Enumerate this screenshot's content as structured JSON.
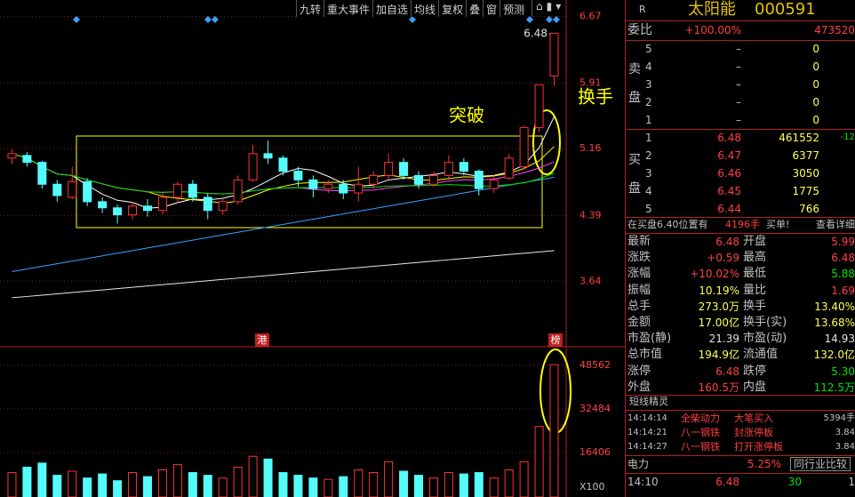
{
  "toolbar": [
    "九转",
    "重大事件",
    "加自选",
    "均线",
    "复权",
    "叠",
    "窗",
    "预测"
  ],
  "chart_data": {
    "type": "candlestick",
    "up_color": "#ff3232",
    "down_color": "#54fcfc",
    "open": [
      5.05,
      5.08,
      5.0,
      4.75,
      4.6,
      4.78,
      4.55,
      4.48,
      4.4,
      4.5,
      4.45,
      4.6,
      4.75,
      4.6,
      4.45,
      4.55,
      4.8,
      5.1,
      5.05,
      4.9,
      4.8,
      4.7,
      4.75,
      4.65,
      4.75,
      4.85,
      5.0,
      4.85,
      4.75,
      4.85,
      5.0,
      4.9,
      4.7,
      4.82,
      4.95,
      5.4,
      5.99
    ],
    "close": [
      5.1,
      5.0,
      4.75,
      4.62,
      4.78,
      4.55,
      4.48,
      4.4,
      4.5,
      4.45,
      4.6,
      4.75,
      4.6,
      4.45,
      4.55,
      4.8,
      5.1,
      5.05,
      4.9,
      4.8,
      4.7,
      4.75,
      4.65,
      4.75,
      4.85,
      5.0,
      4.85,
      4.75,
      4.85,
      5.0,
      4.9,
      4.7,
      4.8,
      5.05,
      5.4,
      5.89,
      6.48
    ],
    "high": [
      5.15,
      5.12,
      5.02,
      4.8,
      4.95,
      4.82,
      4.6,
      4.52,
      4.55,
      4.58,
      4.65,
      4.78,
      4.8,
      4.65,
      4.58,
      4.85,
      5.2,
      5.25,
      5.08,
      4.95,
      4.85,
      4.8,
      4.8,
      4.95,
      4.9,
      5.1,
      5.05,
      4.9,
      4.9,
      5.08,
      5.05,
      4.92,
      4.85,
      5.1,
      5.42,
      5.89,
      6.48
    ],
    "low": [
      4.98,
      4.95,
      4.7,
      4.55,
      4.58,
      4.5,
      4.42,
      4.3,
      4.35,
      4.38,
      4.4,
      4.55,
      4.55,
      4.35,
      4.4,
      4.52,
      4.78,
      4.98,
      4.85,
      4.72,
      4.6,
      4.65,
      4.58,
      4.55,
      4.7,
      4.8,
      4.8,
      4.7,
      4.72,
      4.82,
      4.85,
      4.62,
      4.65,
      4.8,
      4.92,
      5.35,
      5.88
    ],
    "volume": [
      9000,
      11000,
      12500,
      8000,
      9500,
      7000,
      8500,
      6000,
      9000,
      7500,
      10000,
      12000,
      9000,
      8000,
      7000,
      11000,
      15000,
      14000,
      9000,
      8000,
      7000,
      6500,
      7500,
      10000,
      9000,
      13000,
      9500,
      8000,
      7000,
      9000,
      8500,
      9000,
      7000,
      10000,
      13000,
      26000,
      48800
    ],
    "long_lines": [
      {
        "color": "#3aa0ff",
        "values": [
          3.75,
          3.78,
          3.81,
          3.84,
          3.87,
          3.9,
          3.93,
          3.96,
          3.99,
          4.02,
          4.05,
          4.08,
          4.11,
          4.14,
          4.17,
          4.2,
          4.23,
          4.26,
          4.29,
          4.32,
          4.35,
          4.38,
          4.41,
          4.44,
          4.47,
          4.5,
          4.53,
          4.56,
          4.59,
          4.62,
          4.65,
          4.68,
          4.71,
          4.74,
          4.77,
          4.8,
          4.83
        ]
      },
      {
        "color": "#e8e8e8",
        "values": [
          3.45,
          3.465,
          3.48,
          3.495,
          3.51,
          3.525,
          3.54,
          3.555,
          3.57,
          3.585,
          3.6,
          3.615,
          3.63,
          3.645,
          3.66,
          3.675,
          3.69,
          3.705,
          3.72,
          3.735,
          3.75,
          3.765,
          3.78,
          3.795,
          3.81,
          3.825,
          3.84,
          3.855,
          3.87,
          3.885,
          3.9,
          3.915,
          3.93,
          3.945,
          3.96,
          3.975,
          3.99
        ]
      }
    ],
    "ylim": [
      2.94,
      6.86
    ],
    "yticks": [
      3.64,
      4.39,
      5.16,
      5.91,
      6.67
    ],
    "vol_ylim": [
      0,
      53760
    ],
    "vol_yticks": [
      16406,
      32484,
      48562
    ],
    "vol_unit": "X100",
    "high_label": "6.48",
    "annotations": {
      "breakout": "突破",
      "turnover": "换手",
      "mark_left": "港",
      "mark_right": "榜"
    }
  },
  "panel": {
    "r": "R",
    "name": "太阳能",
    "code": "000591",
    "weibi": {
      "label": "委比",
      "pct": "+100.00%",
      "diff": "473520"
    },
    "sell_label": [
      "卖",
      "盘"
    ],
    "buy_label": [
      "买",
      "盘"
    ],
    "sell": [
      {
        "n": "5",
        "price": "–",
        "vol": "0"
      },
      {
        "n": "4",
        "price": "–",
        "vol": "0"
      },
      {
        "n": "3",
        "price": "–",
        "vol": "0"
      },
      {
        "n": "2",
        "price": "–",
        "vol": "0"
      },
      {
        "n": "1",
        "price": "–",
        "vol": "0"
      }
    ],
    "buy": [
      {
        "n": "1",
        "price": "6.48",
        "vol": "461552",
        "chg": "-12"
      },
      {
        "n": "2",
        "price": "6.47",
        "vol": "6377"
      },
      {
        "n": "3",
        "price": "6.46",
        "vol": "3050"
      },
      {
        "n": "4",
        "price": "6.45",
        "vol": "1775"
      },
      {
        "n": "5",
        "price": "6.44",
        "vol": "766"
      }
    ],
    "queue": {
      "text": "在买盘6.40位置有",
      "amount": "4196手",
      "tail": "买单!",
      "link": "查看详细"
    },
    "stats": [
      {
        "l1": "最新",
        "v1": "6.48",
        "c1": "#ff4040",
        "l2": "开盘",
        "v2": "5.99",
        "c2": "#ff4040"
      },
      {
        "l1": "涨跌",
        "v1": "+0.59",
        "c1": "#ff4040",
        "l2": "最高",
        "v2": "6.48",
        "c2": "#ff4040"
      },
      {
        "l1": "涨幅",
        "v1": "+10.02%",
        "c1": "#ff4040",
        "l2": "最低",
        "v2": "5.88",
        "c2": "#00e600"
      },
      {
        "l1": "振幅",
        "v1": "10.19%",
        "c1": "#ffff54",
        "l2": "量比",
        "v2": "1.69",
        "c2": "#ff4040"
      },
      {
        "l1": "总手",
        "v1": "273.0万",
        "c1": "#ffff54",
        "l2": "换手",
        "v2": "13.40%",
        "c2": "#ffff54"
      },
      {
        "l1": "金额",
        "v1": "17.00亿",
        "c1": "#ffff54",
        "l2": "换手(实)",
        "v2": "13.68%",
        "c2": "#ffff54"
      },
      {
        "l1": "市盈(静)",
        "v1": "21.39",
        "c1": "#e0e0e0",
        "l2": "市盈(动)",
        "v2": "14.93",
        "c2": "#e0e0e0"
      },
      {
        "l1": "总市值",
        "v1": "194.9亿",
        "c1": "#ffff54",
        "l2": "流通值",
        "v2": "132.0亿",
        "c2": "#ffff54"
      },
      {
        "l1": "涨停",
        "v1": "6.48",
        "c1": "#ff4040",
        "l2": "跌停",
        "v2": "5.30",
        "c2": "#00e600"
      },
      {
        "l1": "外盘",
        "v1": "160.5万",
        "c1": "#ff4040",
        "l2": "内盘",
        "v2": "112.5万",
        "c2": "#00e600"
      }
    ],
    "short_title": "短线精灵",
    "short": [
      {
        "time": "14:14:14",
        "stock": "全柴动力",
        "event": "大笔买入",
        "value": "5394手"
      },
      {
        "time": "14:14:21",
        "stock": "八一钢铁",
        "event": "封涨停板",
        "value": "3.84"
      },
      {
        "time": "14:14:27",
        "stock": "八一钢铁",
        "event": "打开涨停板",
        "value": "3.84"
      }
    ],
    "industry": {
      "name": "电力",
      "pct": "5.25%",
      "link": "同行业比较"
    },
    "tick": {
      "time": "14:10",
      "price": "6.48",
      "vol": "30",
      "n": "1"
    }
  }
}
